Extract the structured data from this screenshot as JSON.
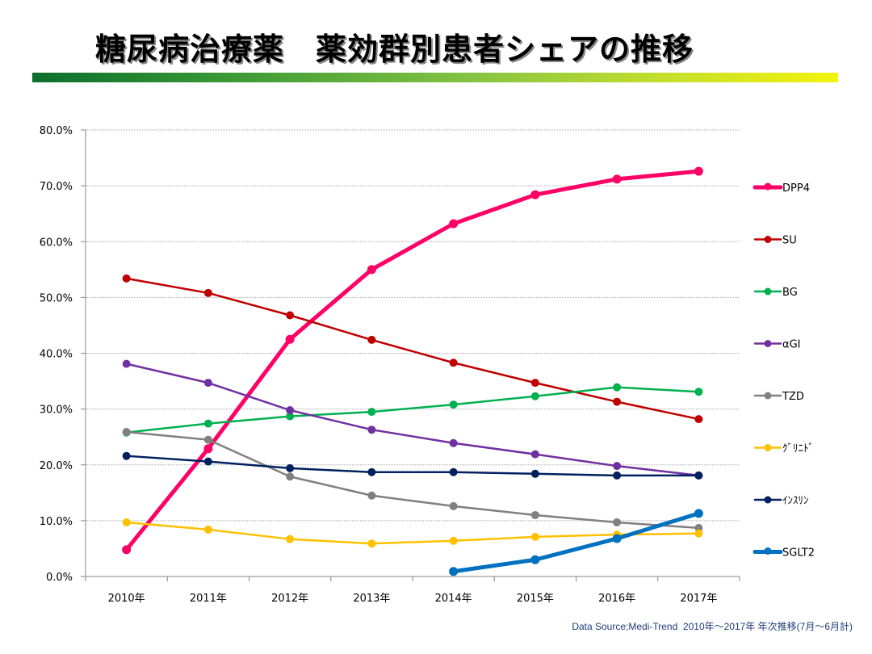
{
  "title": "糖尿病治療薬　薬効群別患者シェアの推移",
  "footer": "Data Source;Medi-Trend  2010年～2017年 年次推移(7月～6月計)",
  "chart_data": {
    "type": "line",
    "title": "糖尿病治療薬　薬効群別患者シェアの推移",
    "xlabel": "",
    "ylabel": "",
    "categories": [
      "2010年",
      "2011年",
      "2012年",
      "2013年",
      "2014年",
      "2015年",
      "2016年",
      "2017年"
    ],
    "ylim": [
      0,
      80
    ],
    "yticks": [
      0,
      10,
      20,
      30,
      40,
      50,
      60,
      70,
      80
    ],
    "ytick_labels": [
      "0.0%",
      "10.0%",
      "20.0%",
      "30.0%",
      "40.0%",
      "50.0%",
      "60.0%",
      "70.0%",
      "80.0%"
    ],
    "grid": "horizontal-dotted",
    "legend_position": "right",
    "series": [
      {
        "name": "DPP4",
        "color": "#ff0066",
        "thick": true,
        "values": [
          4.8,
          22.9,
          42.5,
          55.0,
          63.2,
          68.4,
          71.2,
          72.6
        ]
      },
      {
        "name": "SU",
        "color": "#c00000",
        "thick": false,
        "values": [
          53.4,
          50.8,
          46.8,
          42.4,
          38.3,
          34.7,
          31.3,
          28.2
        ]
      },
      {
        "name": "BG",
        "color": "#00b050",
        "thick": false,
        "values": [
          25.8,
          27.4,
          28.7,
          29.5,
          30.8,
          32.3,
          33.9,
          33.1
        ]
      },
      {
        "name": "αGI",
        "color": "#7030a0",
        "thick": false,
        "values": [
          38.1,
          34.7,
          29.8,
          26.3,
          23.9,
          21.9,
          19.8,
          18.1
        ]
      },
      {
        "name": "TZD",
        "color": "#808080",
        "thick": false,
        "values": [
          25.9,
          24.5,
          17.9,
          14.5,
          12.6,
          11.0,
          9.7,
          8.7
        ]
      },
      {
        "name": "ｸﾞﾘﾆﾄﾞ",
        "color": "#ffc000",
        "thick": false,
        "values": [
          9.7,
          8.4,
          6.7,
          5.9,
          6.4,
          7.1,
          7.5,
          7.7
        ]
      },
      {
        "name": "ｲﾝｽﾘﾝ",
        "color": "#002060",
        "thick": false,
        "values": [
          21.6,
          20.6,
          19.4,
          18.7,
          18.7,
          18.4,
          18.1,
          18.1
        ]
      },
      {
        "name": "SGLT2",
        "color": "#0070c0",
        "thick": true,
        "values": [
          null,
          null,
          null,
          null,
          0.9,
          3.0,
          6.8,
          11.3
        ]
      }
    ]
  }
}
